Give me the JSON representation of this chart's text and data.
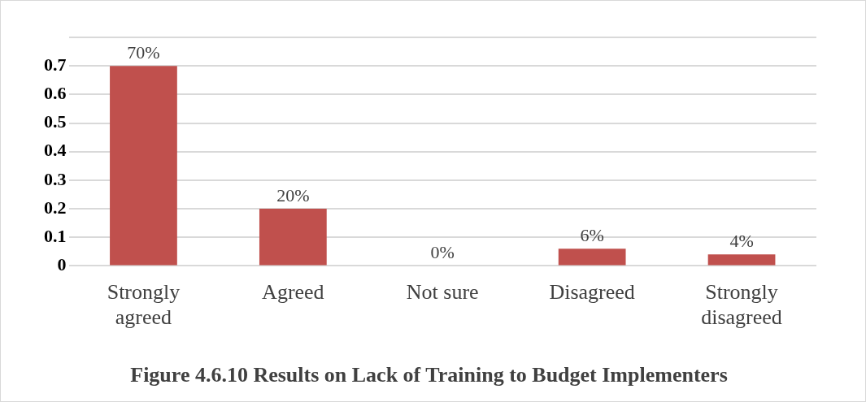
{
  "chart_data": {
    "type": "bar",
    "title": "Figure 4.6.10 Results on Lack of Training to Budget Implementers",
    "categories": [
      "Strongly agreed",
      "Agreed",
      "Not sure",
      "Disagreed",
      "Strongly disagreed"
    ],
    "values": [
      0.7,
      0.2,
      0,
      0.06,
      0.04
    ],
    "value_labels": [
      "70%",
      "20%",
      "0%",
      "6%",
      "4%"
    ],
    "color": "#c0504d",
    "ylim": [
      0,
      0.8
    ],
    "yticks": [
      0,
      0.1,
      0.2,
      0.3,
      0.4,
      0.5,
      0.6,
      0.7,
      {
        "value": 0.8,
        "label": null
      }
    ],
    "grid": "y",
    "legend": false
  }
}
